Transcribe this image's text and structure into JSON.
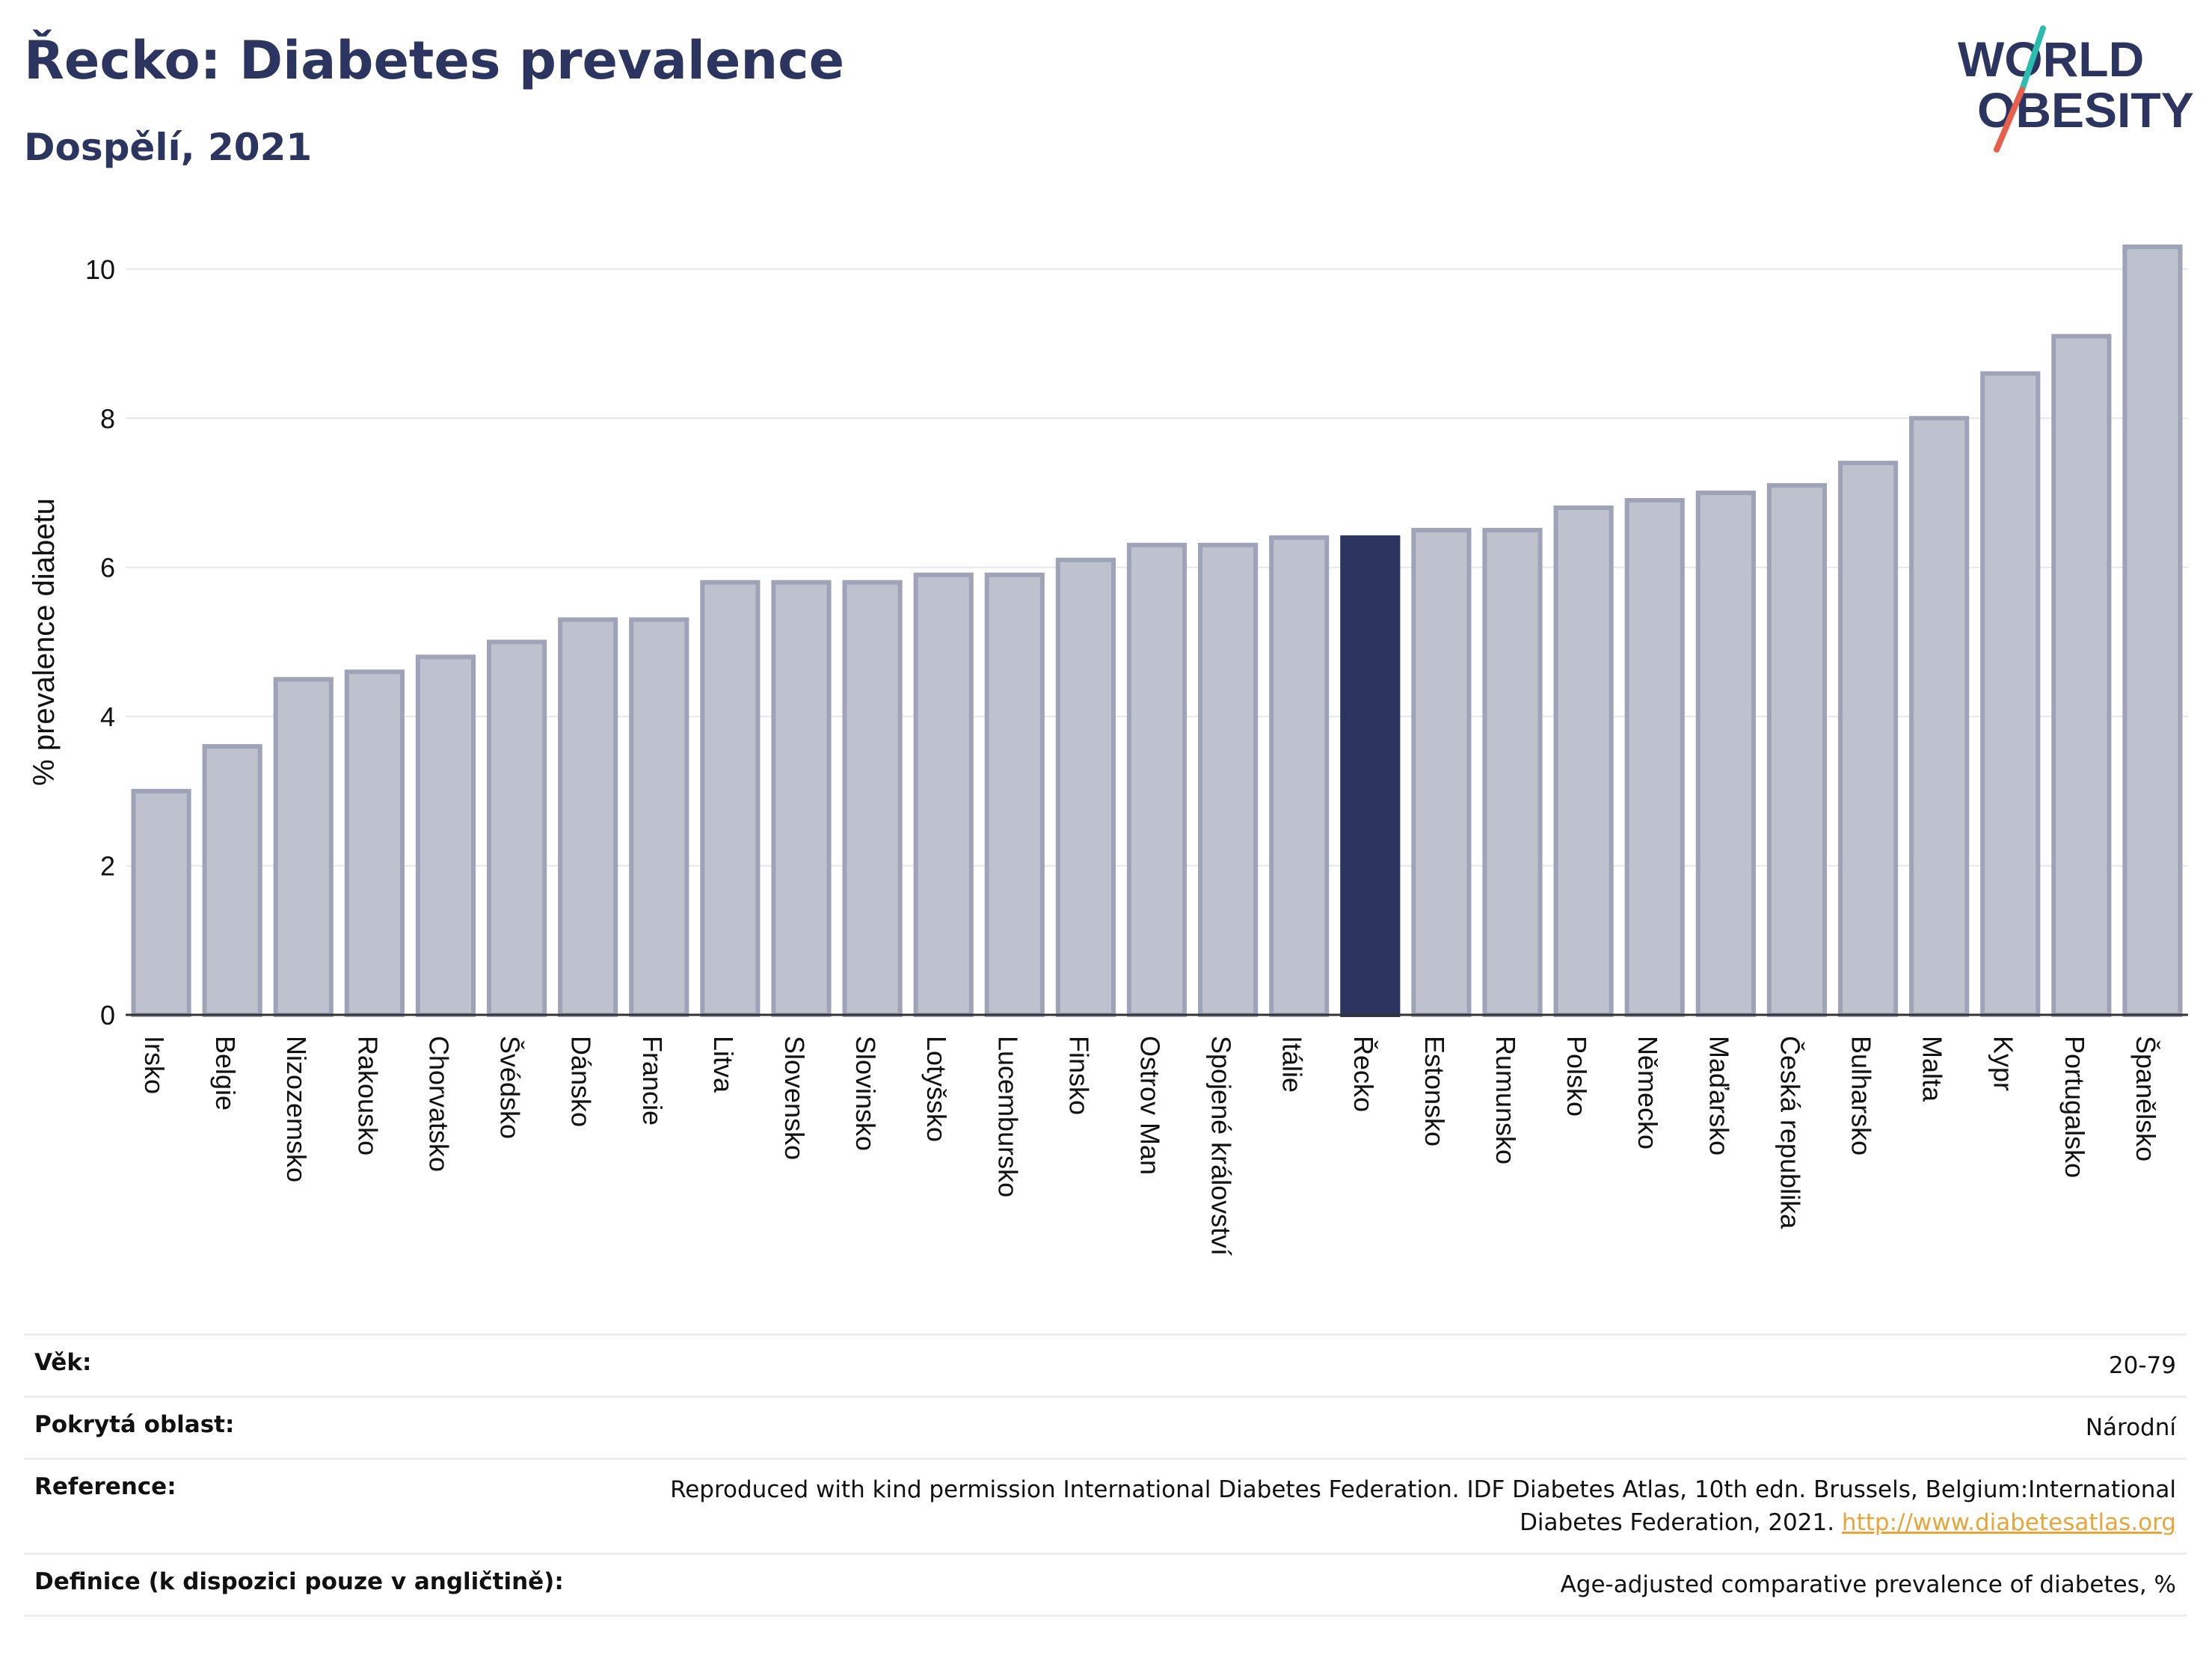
{
  "header": {
    "title": "Řecko: Diabetes prevalence",
    "subtitle": "Dospělí, 2021"
  },
  "logo": {
    "line1": "WORLD",
    "line2": "OBESITY",
    "colors": {
      "text": "#2b3560",
      "slash_top": "#2bbcb0",
      "slash_bottom": "#e8604c"
    }
  },
  "chart_data": {
    "type": "bar",
    "ylabel": "% prevalence diabetu",
    "xlabel": "",
    "ylim": [
      0,
      10.6
    ],
    "yticks": [
      0,
      2,
      4,
      6,
      8,
      10
    ],
    "grid": true,
    "categories": [
      "Irsko",
      "Belgie",
      "Nizozemsko",
      "Rakousko",
      "Chorvatsko",
      "Švédsko",
      "Dánsko",
      "Francie",
      "Litva",
      "Slovensko",
      "Slovinsko",
      "Lotyšsko",
      "Lucembursko",
      "Finsko",
      "Ostrov Man",
      "Spojené království",
      "Itálie",
      "Řecko",
      "Estonsko",
      "Rumunsko",
      "Polsko",
      "Německo",
      "Maďarsko",
      "Česká republika",
      "Bulharsko",
      "Malta",
      "Kypr",
      "Portugalsko",
      "Španělsko"
    ],
    "values": [
      3.0,
      3.6,
      4.5,
      4.6,
      4.8,
      5.0,
      5.3,
      5.3,
      5.8,
      5.8,
      5.8,
      5.9,
      5.9,
      6.1,
      6.3,
      6.3,
      6.4,
      6.4,
      6.5,
      6.5,
      6.8,
      6.9,
      7.0,
      7.1,
      7.4,
      8.0,
      8.6,
      9.1,
      10.3
    ],
    "highlight": "Řecko",
    "colors": {
      "bar": "#bec1ce",
      "bar_border": "#9ea3b8",
      "highlight": "#2b3560",
      "grid": "#e8e8e8",
      "axis": "#333333"
    }
  },
  "info": {
    "rows": [
      {
        "label": "Věk:",
        "value": "20-79"
      },
      {
        "label": "Pokrytá oblast:",
        "value": "Národní"
      },
      {
        "label": "Reference:",
        "value": "Reproduced with kind permission International Diabetes Federation.  IDF Diabetes Atlas, 10th edn. Brussels, Belgium:International Diabetes Federation, 2021. ",
        "link": "http://www.diabetesatlas.org"
      },
      {
        "label": "Definice (k dispozici pouze v angličtině):",
        "value": "Age-adjusted comparative prevalence of diabetes, %"
      }
    ]
  }
}
